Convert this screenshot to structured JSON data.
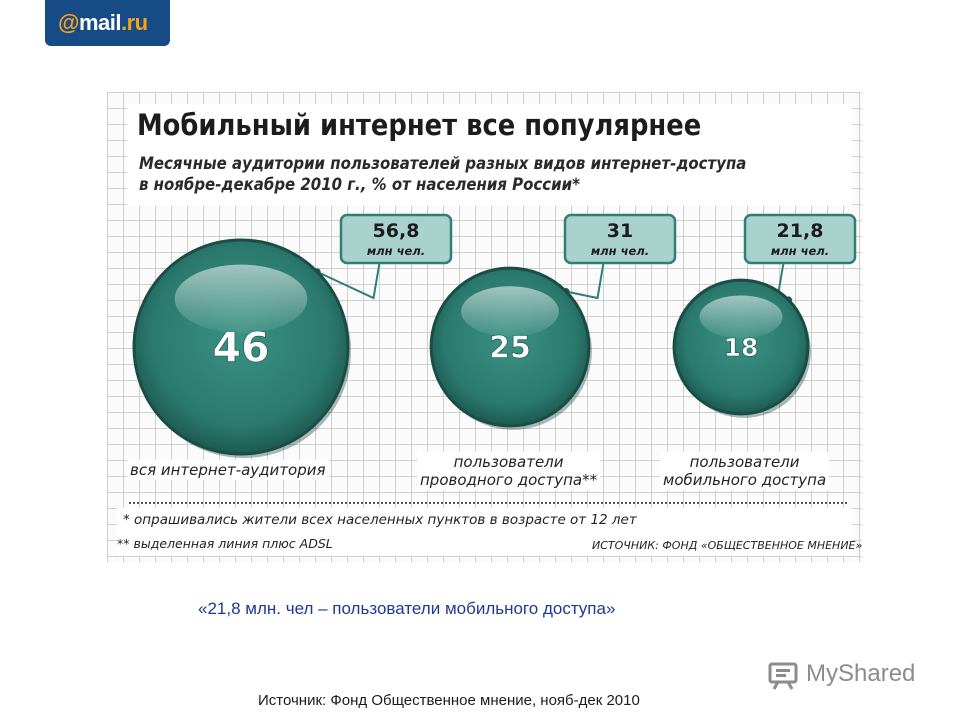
{
  "logo": {
    "at": "@",
    "name": "mail",
    "dot_ru": ".ru"
  },
  "chart_data": {
    "type": "bubble",
    "title": "Мобильный интернет все популярнее",
    "subtitle_lines": [
      "Месячные аудитории пользователей разных видов интернет-доступа",
      "в ноябре-декабре 2010 г., % от населения России*"
    ],
    "categories": [
      [
        "вся интернет-аудитория"
      ],
      [
        "пользователи",
        "проводного доступа**"
      ],
      [
        "пользователи",
        "мобильного доступа"
      ]
    ],
    "values": [
      46,
      25,
      18
    ],
    "callouts": [
      {
        "value": "56,8",
        "unit": "млн чел."
      },
      {
        "value": "31",
        "unit": "млн чел."
      },
      {
        "value": "21,8",
        "unit": "млн чел."
      }
    ],
    "notes": [
      "* опрашивались жители всех населенных пунктов в возрасте от 12 лет",
      "** выделенная линия плюс ADSL"
    ],
    "source": "ИСТОЧНИК: ФОНД «ОБЩЕСТВЕННОЕ МНЕНИЕ»",
    "colors": {
      "bubble": "#2f7f73",
      "bubble_dark": "#1c4f48",
      "callout": "#a9d2cd"
    }
  },
  "quote": "«21,8 млн. чел – пользователи мобильного доступа»",
  "watermark": "MyShared",
  "footer_source": "Источник: Фонд Общественное мнение, нояб-дек 2010"
}
